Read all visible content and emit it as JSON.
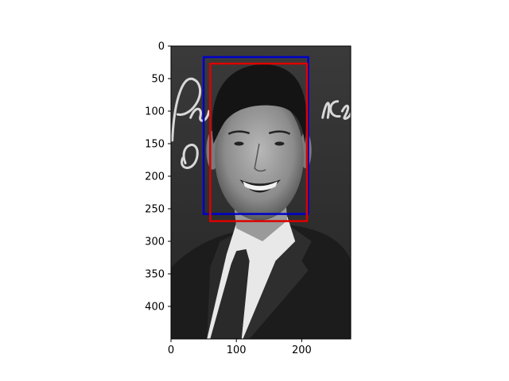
{
  "chart_data": {
    "type": "image",
    "image": {
      "subject": "grayscale photo of a smiling man in dark suit and tie",
      "background_text": "Pe... ice",
      "width": 275,
      "height": 450
    },
    "xlim": [
      0,
      275
    ],
    "ylim": [
      450,
      0
    ],
    "x_ticks": [
      0,
      100,
      200
    ],
    "y_ticks": [
      0,
      50,
      100,
      150,
      200,
      250,
      300,
      350,
      400
    ],
    "grid": false,
    "legend": "none",
    "boxes": [
      {
        "x0": 50,
        "y0": 17,
        "x1": 210,
        "y1": 258,
        "color": "#0000cc"
      },
      {
        "x0": 60,
        "y0": 27,
        "x1": 208,
        "y1": 269,
        "color": "#dd0000"
      }
    ]
  }
}
